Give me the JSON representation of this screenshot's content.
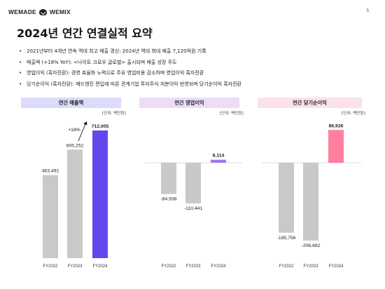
{
  "header": {
    "brand_left": "WEMADE",
    "brand_right": "WEMIX",
    "page_number": "5"
  },
  "title": "2024년 연간 연결실적 요약",
  "bullets": [
    "2021년부터 4개년 연속 역대 최고 매출 경신: 2024년 역대 최대 매출 7,120억원 기록",
    "매출액 (+18% YoY): <나이트 크로우 글로벌> 출시되며 매출 성장 주도",
    "영업이익 (흑자전환): 경영 효율화 노력으로 주요 영업비용 감소하며 영업이익 흑자전환",
    "당기순이익 (흑자전환): 매드엔진 편입에 따른 관계기업 투자주식 처분이익 반영되며 당기순이익 흑자전환"
  ],
  "panels": [
    {
      "heading": "연간 매출액",
      "unit": "[단위: 백만원]",
      "header_color": "#dcdcfa"
    },
    {
      "heading": "연간 영업이익",
      "unit": "[단위: 백만원]",
      "header_color": "#ecdcf8"
    },
    {
      "heading": "연간 당기순이익",
      "unit": "[단위: 백만원]",
      "header_color": "#fbe2e8"
    }
  ],
  "colors": {
    "base_bar": "#c9c9c9",
    "revenue_highlight": "#6148ee",
    "op_highlight": "#a476f0",
    "net_highlight": "#ff7f9c"
  },
  "chart_data": [
    {
      "type": "bar",
      "title": "연간 매출액",
      "categories": [
        "FY2022",
        "FY2023",
        "FY2024"
      ],
      "values": [
        463492,
        605252,
        712005
      ],
      "value_labels": [
        "463,492",
        "605,252",
        "712,005"
      ],
      "annotation": "+18%",
      "highlight_index": 2
    },
    {
      "type": "bar",
      "title": "연간 영업이익",
      "categories": [
        "FY2022",
        "FY2023",
        "FY2024"
      ],
      "values": [
        -84938,
        -110441,
        8114
      ],
      "value_labels": [
        "-84,938",
        "-110,441",
        "8,114"
      ],
      "highlight_index": 2
    },
    {
      "type": "bar",
      "title": "연간 당기순이익",
      "categories": [
        "FY2022",
        "FY2023",
        "FY2024"
      ],
      "values": [
        -185756,
        -206682,
        86926
      ],
      "value_labels": [
        "-185,756",
        "-206,682",
        "86,926"
      ],
      "highlight_index": 2
    }
  ]
}
